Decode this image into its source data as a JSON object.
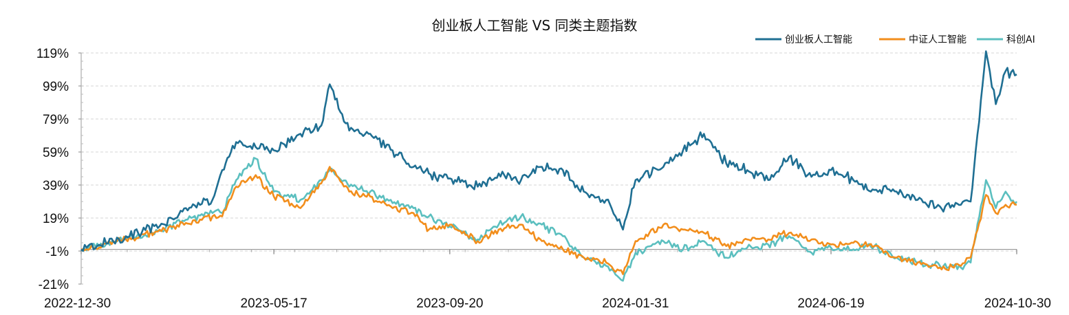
{
  "chart_data": {
    "type": "line",
    "title": "创业板人工智能 VS 同类主题指数",
    "xlabel": "",
    "ylabel": "",
    "x_ticks": [
      "2022-12-30",
      "2023-05-17",
      "2023-09-20",
      "2024-01-31",
      "2024-06-19",
      "2024-10-30"
    ],
    "y_ticks": [
      "119%",
      "99%",
      "79%",
      "59%",
      "39%",
      "19%",
      "-1%",
      "-21%"
    ],
    "ylim": [
      -21,
      119
    ],
    "legend_position": "top-right",
    "grid": "horizontal dashed",
    "x": [
      "2022-12-30",
      "2023-01-31",
      "2023-02-28",
      "2023-03-15",
      "2023-04-03",
      "2023-04-10",
      "2023-04-20",
      "2023-05-04",
      "2023-05-17",
      "2023-06-05",
      "2023-06-20",
      "2023-06-26",
      "2023-07-10",
      "2023-07-25",
      "2023-08-10",
      "2023-08-25",
      "2023-09-05",
      "2023-09-20",
      "2023-10-10",
      "2023-10-25",
      "2023-11-10",
      "2023-11-25",
      "2023-12-10",
      "2023-12-25",
      "2024-01-10",
      "2024-01-22",
      "2024-01-31",
      "2024-02-20",
      "2024-03-05",
      "2024-03-20",
      "2024-04-05",
      "2024-04-20",
      "2024-05-05",
      "2024-05-20",
      "2024-06-05",
      "2024-06-19",
      "2024-07-05",
      "2024-07-20",
      "2024-08-05",
      "2024-08-20",
      "2024-09-05",
      "2024-09-20",
      "2024-09-27",
      "2024-10-08",
      "2024-10-15",
      "2024-10-22",
      "2024-10-30"
    ],
    "series": [
      {
        "name": "创业板人工智能",
        "color": "#1f6f93",
        "values": [
          0,
          8,
          15,
          25,
          30,
          48,
          65,
          62,
          60,
          70,
          75,
          100,
          72,
          70,
          60,
          50,
          46,
          43,
          38,
          46,
          42,
          50,
          48,
          35,
          30,
          12,
          42,
          50,
          60,
          70,
          52,
          48,
          42,
          56,
          44,
          48,
          42,
          36,
          35,
          30,
          26,
          27,
          29,
          120,
          88,
          108,
          106
        ]
      },
      {
        "name": "中证人工智能",
        "color": "#f28e1c",
        "values": [
          0,
          6,
          12,
          16,
          20,
          20,
          38,
          45,
          32,
          25,
          40,
          50,
          35,
          32,
          25,
          22,
          12,
          15,
          5,
          12,
          15,
          5,
          0,
          -5,
          -8,
          -15,
          5,
          15,
          12,
          10,
          2,
          6,
          6,
          10,
          6,
          3,
          4,
          2,
          -5,
          -8,
          -11,
          -10,
          -5,
          33,
          22,
          27,
          27
        ]
      },
      {
        "name": "科创AI",
        "color": "#5bbfbf",
        "values": [
          0,
          6,
          12,
          18,
          22,
          22,
          42,
          55,
          35,
          30,
          42,
          48,
          38,
          35,
          28,
          25,
          20,
          14,
          6,
          15,
          20,
          15,
          8,
          -5,
          -10,
          -19,
          -2,
          5,
          0,
          5,
          -5,
          1,
          3,
          8,
          -2,
          1,
          0,
          2,
          -5,
          -8,
          -10,
          -11,
          -8,
          42,
          25,
          35,
          29
        ]
      }
    ]
  }
}
